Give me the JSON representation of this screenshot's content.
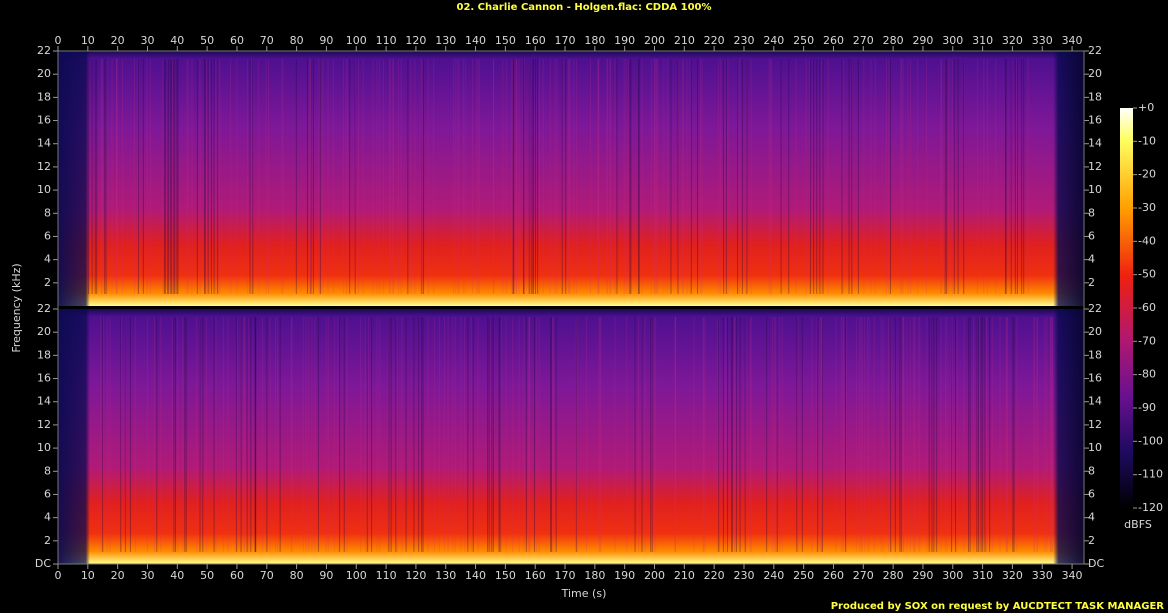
{
  "chart_data": {
    "type": "spectrogram",
    "title": "02. Charlie Cannon - Holgen.flac: CDDA 100%",
    "x_label": "Time (s)",
    "y_label": "Frequency (kHz)",
    "xlim": [
      0,
      344
    ],
    "xticks": [
      0,
      10,
      20,
      30,
      40,
      50,
      60,
      70,
      80,
      90,
      100,
      110,
      120,
      130,
      140,
      150,
      160,
      170,
      180,
      190,
      200,
      210,
      220,
      230,
      240,
      250,
      260,
      270,
      280,
      290,
      300,
      310,
      320,
      330,
      340
    ],
    "channels": [
      {
        "ylim": [
          0,
          22
        ],
        "yticks": [
          2,
          4,
          6,
          8,
          10,
          12,
          14,
          16,
          18,
          20,
          22
        ]
      },
      {
        "ylim": [
          0,
          22
        ],
        "yticks": [
          {
            "value": 0,
            "label": "DC"
          },
          2,
          4,
          6,
          8,
          10,
          12,
          14,
          16,
          18,
          20,
          22
        ]
      }
    ],
    "colorbar": {
      "label": "dBFS",
      "lim": [
        -120,
        0
      ],
      "ticks": [
        {
          "value": 0,
          "label": "+0"
        },
        -10,
        -20,
        -30,
        -40,
        -50,
        -60,
        -70,
        -80,
        -90,
        -100,
        -110,
        -120
      ]
    },
    "footer": "Produced by SOX on request by AUCDTECT TASK MANAGER"
  }
}
